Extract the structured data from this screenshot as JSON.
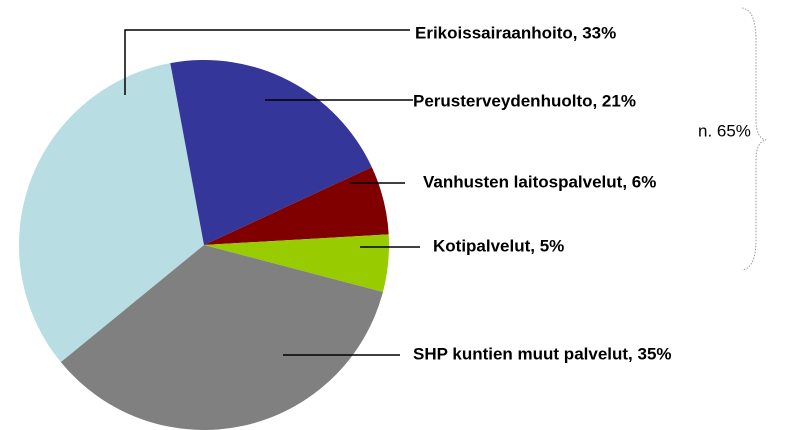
{
  "chart_data": {
    "type": "pie",
    "values": [
      33,
      21,
      6,
      5,
      35
    ],
    "value_labels": [
      "Erikoissairaanhoito, 33%",
      "Perusterveydenhuolto, 21%",
      "Vanhusten laitospalvelut, 6%",
      "Kotipalvelut, 5%",
      "SHP kuntien muut palvelut, 35%"
    ],
    "colors": [
      "#b8dee3",
      "#343699",
      "#800000",
      "#99cc00",
      "#808080"
    ],
    "annotation": "n. 65%"
  }
}
